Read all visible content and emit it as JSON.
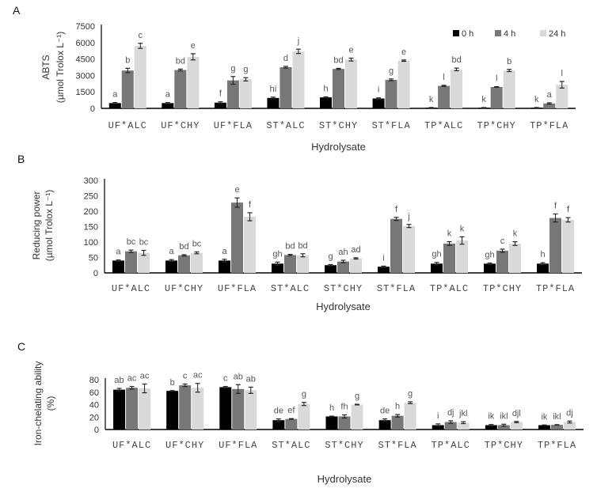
{
  "chart_data": [
    {
      "panel": "A",
      "type": "bar",
      "categories": [
        "UF*ALC",
        "UF*CHY",
        "UF*FLA",
        "ST*ALC",
        "ST*CHY",
        "ST*FLA",
        "TP*ALC",
        "TP*CHY",
        "TP*FLA"
      ],
      "xlabel": "Hydrolysate",
      "ylabel": [
        "ABTS",
        "(µmol Trolox L⁻¹)"
      ],
      "ylim": [
        0,
        7500
      ],
      "yticks": [
        0,
        1500,
        3000,
        4500,
        6000,
        7500
      ],
      "legend": "top-right",
      "grid": false,
      "series": [
        {
          "name": "0 h",
          "color": "#000000",
          "values": [
            480,
            480,
            520,
            950,
            1000,
            900,
            60,
            60,
            60
          ],
          "errors": [
            50,
            50,
            80,
            70,
            50,
            60,
            20,
            20,
            20
          ],
          "letters": [
            "a",
            "a",
            "f",
            "hi",
            "h",
            "i",
            "k",
            "k",
            "k"
          ]
        },
        {
          "name": "4 h",
          "color": "#777777",
          "values": [
            3450,
            3500,
            2550,
            3750,
            3600,
            2600,
            2050,
            1950,
            450
          ],
          "errors": [
            200,
            80,
            350,
            80,
            50,
            80,
            50,
            30,
            60
          ],
          "letters": [
            "b",
            "bd",
            "g",
            "d",
            "bd",
            "g",
            "l",
            "l",
            "a"
          ]
        },
        {
          "name": "24 h",
          "color": "#d9d9d9",
          "values": [
            5700,
            4700,
            2650,
            5200,
            4450,
            4350,
            3550,
            3450,
            2150
          ],
          "errors": [
            230,
            280,
            150,
            200,
            130,
            60,
            120,
            100,
            300
          ],
          "letters": [
            "c",
            "e",
            "g",
            "j",
            "e",
            "e",
            "bd",
            "b",
            "l"
          ]
        }
      ]
    },
    {
      "panel": "B",
      "type": "bar",
      "categories": [
        "UF*ALC",
        "UF*CHY",
        "UF*FLA",
        "ST*ALC",
        "ST*CHY",
        "ST*FLA",
        "TP*ALC",
        "TP*CHY",
        "TP*FLA"
      ],
      "xlabel": "Hydrolysate",
      "ylabel": [
        "Reducing power",
        "(µmol Trolox L⁻¹)"
      ],
      "ylim": [
        0,
        300
      ],
      "yticks": [
        0,
        50,
        100,
        150,
        200,
        250,
        300
      ],
      "grid": false,
      "series": [
        {
          "name": "0 h",
          "color": "#000000",
          "values": [
            40,
            40,
            40,
            30,
            25,
            20,
            30,
            30,
            30
          ],
          "errors": [
            2,
            3,
            4,
            5,
            2,
            2,
            4,
            2,
            3
          ],
          "letters": [
            "a",
            "a",
            "a",
            "gh",
            "g",
            "i",
            "gh",
            "gh",
            "h"
          ]
        },
        {
          "name": "4 h",
          "color": "#777777",
          "values": [
            70,
            57,
            228,
            58,
            37,
            175,
            95,
            72,
            178
          ],
          "errors": [
            4,
            2,
            15,
            2,
            4,
            5,
            6,
            5,
            13
          ],
          "letters": [
            "bc",
            "bd",
            "e",
            "bd",
            "ah",
            "f",
            "k",
            "c",
            "f"
          ]
        },
        {
          "name": "24 h",
          "color": "#d9d9d9",
          "values": [
            65,
            65,
            182,
            57,
            47,
            152,
            105,
            95,
            172
          ],
          "errors": [
            8,
            3,
            13,
            5,
            2,
            5,
            12,
            6,
            7
          ],
          "letters": [
            "bc",
            "bc",
            "f",
            "bd",
            "ad",
            "j",
            "k",
            "k",
            "f"
          ]
        }
      ]
    },
    {
      "panel": "C",
      "type": "bar",
      "categories": [
        "UF*ALC",
        "UF*CHY",
        "UF*FLA",
        "ST*ALC",
        "ST*CHY",
        "ST*FLA",
        "TP*ALC",
        "TP*CHY",
        "TP*FLA"
      ],
      "xlabel": "Hydrolysate",
      "ylabel": [
        "Iron-chelating ability",
        "(%)"
      ],
      "ylim": [
        0,
        80
      ],
      "yticks": [
        0,
        20,
        40,
        60,
        80
      ],
      "grid": false,
      "series": [
        {
          "name": "0 h",
          "color": "#000000",
          "values": [
            64,
            62,
            68,
            15,
            21,
            15,
            7,
            7,
            7
          ],
          "errors": [
            2,
            0.5,
            1,
            2,
            0.5,
            2,
            2,
            1,
            0.3
          ],
          "letters": [
            "ab",
            "b",
            "c",
            "de",
            "h",
            "de",
            "i",
            "ik",
            "ik"
          ]
        },
        {
          "name": "4 h",
          "color": "#777777",
          "values": [
            67,
            71,
            65,
            17,
            21,
            22,
            12,
            7,
            7.5
          ],
          "errors": [
            2,
            2,
            7,
            0.5,
            2.5,
            2,
            2,
            1.5,
            0.3
          ],
          "letters": [
            "ac",
            "c",
            "ab",
            "ef",
            "fh",
            "h",
            "dj",
            "ikl",
            "ikl"
          ]
        },
        {
          "name": "24 h",
          "color": "#d9d9d9",
          "values": [
            66,
            67,
            63,
            41,
            40,
            43,
            11,
            12,
            12
          ],
          "errors": [
            7,
            7,
            5,
            2.5,
            0.5,
            1.5,
            1.5,
            1,
            1.5
          ],
          "letters": [
            "ac",
            "ac",
            "ab",
            "g",
            "g",
            "g",
            "jkl",
            "djl",
            "dj"
          ]
        }
      ]
    }
  ]
}
